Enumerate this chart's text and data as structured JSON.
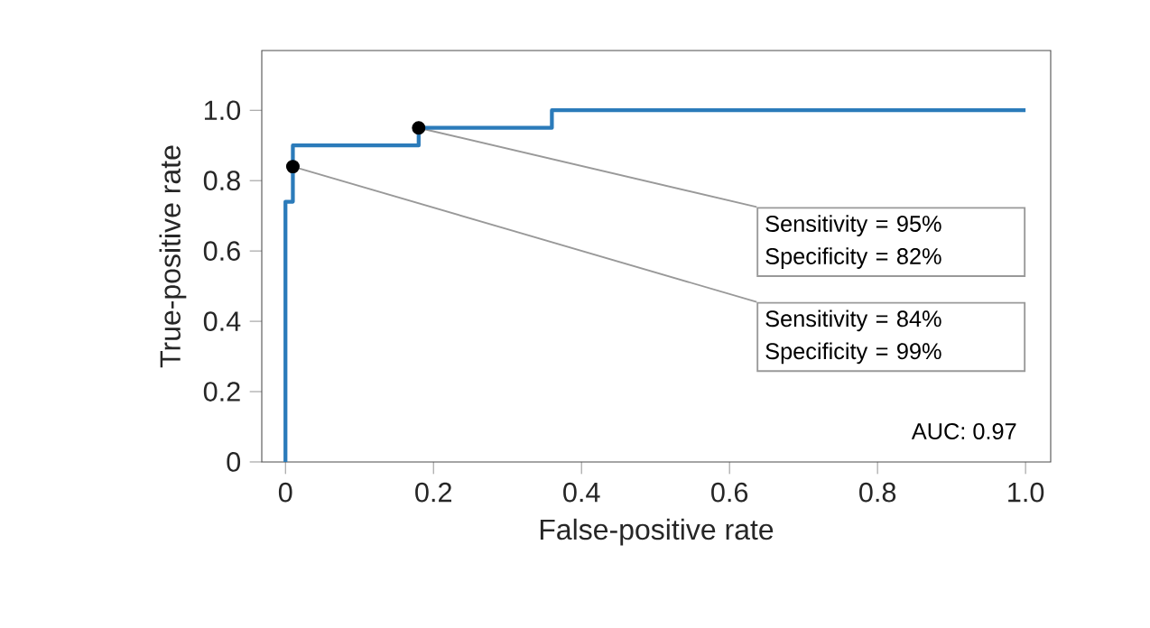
{
  "chart_data": {
    "type": "step",
    "xlabel": "False-positive rate",
    "ylabel": "True-positive rate",
    "xlim": [
      -0.032,
      1.034
    ],
    "ylim": [
      0,
      1.17
    ],
    "xticks": [
      {
        "value": 0,
        "label": "0"
      },
      0.2,
      0.4,
      0.6,
      0.8,
      {
        "value": 1,
        "label": "1.0"
      }
    ],
    "yticks": [
      {
        "value": 0,
        "label": "0"
      },
      0.2,
      0.4,
      0.6,
      0.8,
      {
        "value": 1,
        "label": "1.0"
      }
    ],
    "series": [
      {
        "color": "#2b7bba",
        "x": [
          0,
          0,
          0.01,
          0.18,
          0.36,
          1.0
        ],
        "values": [
          0,
          0.74,
          0.9,
          0.95,
          1.0,
          1.0
        ]
      },
      {
        "type": "scatter",
        "color": "#000000",
        "x": [
          0.01,
          0.18
        ],
        "values": [
          0.84,
          0.95
        ]
      }
    ],
    "annotations": [
      {
        "text": "Sensitivity = 95%",
        "x": 0.18,
        "y": 0.95
      },
      "Specificity = 82%",
      {
        "text": "Sensitivity = 84%",
        "x": 0.01,
        "y": 0.84
      },
      "Specificity = 99%",
      "AUC: 0.97"
    ]
  }
}
